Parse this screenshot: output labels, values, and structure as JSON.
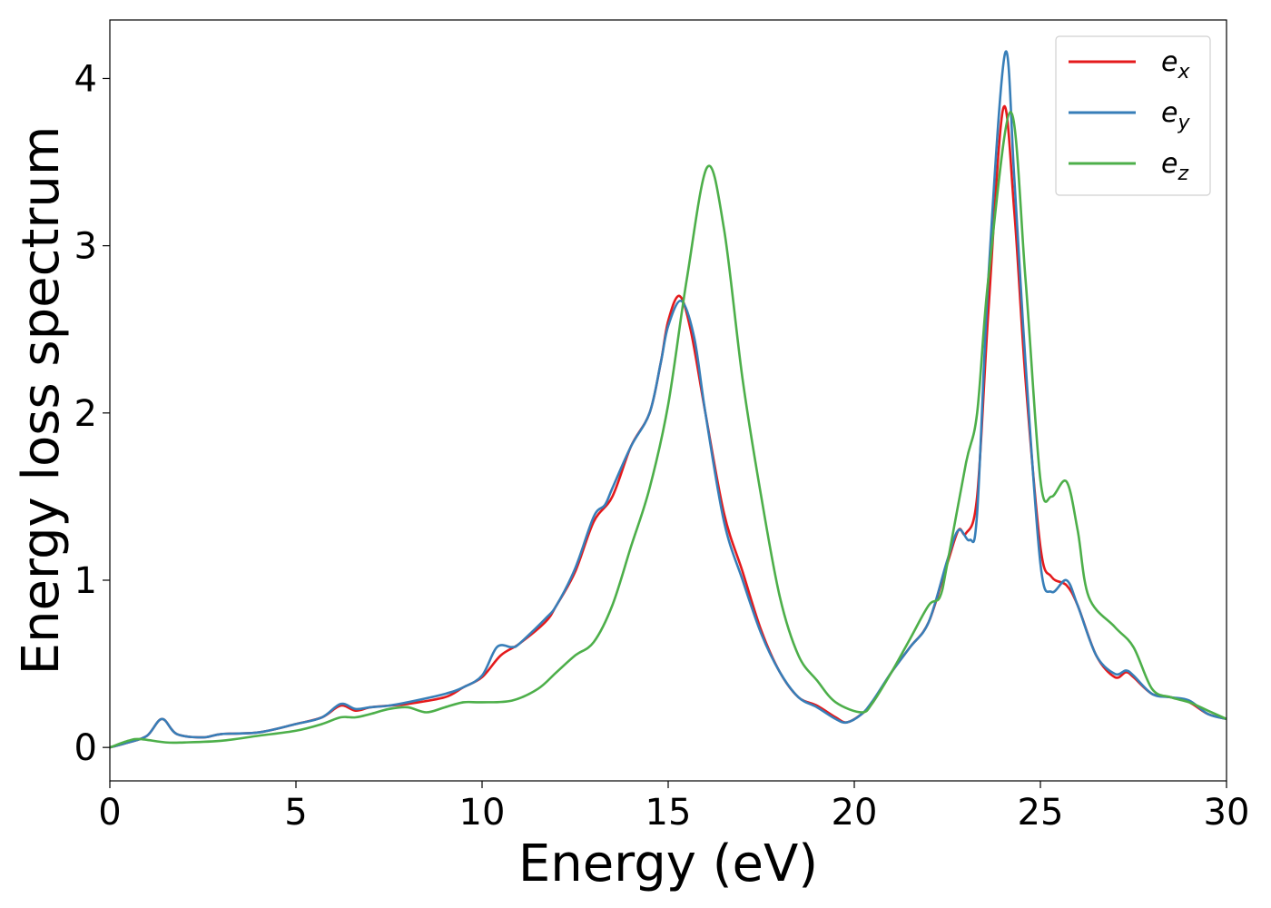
{
  "chart_data": {
    "type": "line",
    "title": "",
    "xlabel": "Energy (eV)",
    "ylabel": "Energy loss spectrum",
    "xlim": [
      0,
      30
    ],
    "ylim": [
      -0.2,
      4.35
    ],
    "xticks": [
      0,
      5,
      10,
      15,
      20,
      25,
      30
    ],
    "yticks": [
      0,
      1,
      2,
      3,
      4
    ],
    "grid": false,
    "legend_position": "top-right",
    "series": [
      {
        "name": "e",
        "name_sub": "x",
        "color": "#e41a1c",
        "points": [
          [
            0,
            0
          ],
          [
            0.5,
            0.03
          ],
          [
            1,
            0.07
          ],
          [
            1.4,
            0.17
          ],
          [
            1.8,
            0.08
          ],
          [
            2.5,
            0.06
          ],
          [
            3,
            0.08
          ],
          [
            4,
            0.09
          ],
          [
            5,
            0.14
          ],
          [
            5.7,
            0.18
          ],
          [
            6.2,
            0.25
          ],
          [
            6.6,
            0.22
          ],
          [
            7,
            0.24
          ],
          [
            7.5,
            0.25
          ],
          [
            8,
            0.26
          ],
          [
            9,
            0.3
          ],
          [
            9.5,
            0.36
          ],
          [
            10,
            0.42
          ],
          [
            10.5,
            0.55
          ],
          [
            11,
            0.62
          ],
          [
            11.7,
            0.75
          ],
          [
            12,
            0.85
          ],
          [
            12.5,
            1.05
          ],
          [
            13,
            1.35
          ],
          [
            13.5,
            1.5
          ],
          [
            14,
            1.8
          ],
          [
            14.5,
            2.0
          ],
          [
            14.8,
            2.3
          ],
          [
            15,
            2.55
          ],
          [
            15.3,
            2.7
          ],
          [
            15.6,
            2.5
          ],
          [
            16,
            2.0
          ],
          [
            16.5,
            1.4
          ],
          [
            17,
            1.05
          ],
          [
            17.5,
            0.7
          ],
          [
            18,
            0.45
          ],
          [
            18.5,
            0.3
          ],
          [
            19,
            0.25
          ],
          [
            19.5,
            0.18
          ],
          [
            19.8,
            0.15
          ],
          [
            20.2,
            0.2
          ],
          [
            20.5,
            0.27
          ],
          [
            21,
            0.45
          ],
          [
            21.5,
            0.6
          ],
          [
            22,
            0.75
          ],
          [
            22.5,
            1.1
          ],
          [
            22.8,
            1.3
          ],
          [
            23,
            1.28
          ],
          [
            23.3,
            1.5
          ],
          [
            23.6,
            2.6
          ],
          [
            24,
            3.82
          ],
          [
            24.3,
            3.2
          ],
          [
            24.6,
            2.2
          ],
          [
            25,
            1.2
          ],
          [
            25.3,
            1.02
          ],
          [
            25.7,
            0.97
          ],
          [
            26,
            0.85
          ],
          [
            26.5,
            0.55
          ],
          [
            27,
            0.42
          ],
          [
            27.3,
            0.45
          ],
          [
            27.5,
            0.42
          ],
          [
            28,
            0.32
          ],
          [
            28.5,
            0.3
          ],
          [
            29,
            0.27
          ],
          [
            29.5,
            0.2
          ],
          [
            30,
            0.17
          ]
        ]
      },
      {
        "name": "e",
        "name_sub": "y",
        "color": "#377eb8",
        "points": [
          [
            0,
            0
          ],
          [
            0.5,
            0.03
          ],
          [
            1,
            0.07
          ],
          [
            1.4,
            0.17
          ],
          [
            1.8,
            0.08
          ],
          [
            2.5,
            0.06
          ],
          [
            3,
            0.08
          ],
          [
            4,
            0.09
          ],
          [
            5,
            0.14
          ],
          [
            5.7,
            0.18
          ],
          [
            6.2,
            0.26
          ],
          [
            6.6,
            0.23
          ],
          [
            7,
            0.24
          ],
          [
            7.5,
            0.25
          ],
          [
            8,
            0.27
          ],
          [
            9,
            0.32
          ],
          [
            9.5,
            0.36
          ],
          [
            10,
            0.43
          ],
          [
            10.4,
            0.6
          ],
          [
            10.8,
            0.6
          ],
          [
            11,
            0.62
          ],
          [
            11.7,
            0.77
          ],
          [
            12,
            0.85
          ],
          [
            12.5,
            1.07
          ],
          [
            13,
            1.38
          ],
          [
            13.3,
            1.45
          ],
          [
            13.5,
            1.55
          ],
          [
            14,
            1.8
          ],
          [
            14.5,
            2.0
          ],
          [
            14.8,
            2.3
          ],
          [
            15,
            2.52
          ],
          [
            15.35,
            2.67
          ],
          [
            15.7,
            2.45
          ],
          [
            16,
            2.0
          ],
          [
            16.5,
            1.35
          ],
          [
            17,
            1.0
          ],
          [
            17.5,
            0.68
          ],
          [
            18,
            0.45
          ],
          [
            18.5,
            0.3
          ],
          [
            19,
            0.24
          ],
          [
            19.5,
            0.17
          ],
          [
            19.8,
            0.15
          ],
          [
            20.2,
            0.2
          ],
          [
            20.5,
            0.28
          ],
          [
            21,
            0.45
          ],
          [
            21.5,
            0.6
          ],
          [
            22,
            0.75
          ],
          [
            22.5,
            1.12
          ],
          [
            22.8,
            1.3
          ],
          [
            23.1,
            1.24
          ],
          [
            23.3,
            1.4
          ],
          [
            23.6,
            2.8
          ],
          [
            24.05,
            4.15
          ],
          [
            24.3,
            3.4
          ],
          [
            24.6,
            2.3
          ],
          [
            25,
            1.1
          ],
          [
            25.3,
            0.93
          ],
          [
            25.7,
            1.0
          ],
          [
            26,
            0.85
          ],
          [
            26.5,
            0.55
          ],
          [
            27,
            0.44
          ],
          [
            27.3,
            0.46
          ],
          [
            27.5,
            0.43
          ],
          [
            28,
            0.32
          ],
          [
            28.5,
            0.3
          ],
          [
            29,
            0.28
          ],
          [
            29.5,
            0.2
          ],
          [
            30,
            0.17
          ]
        ]
      },
      {
        "name": "e",
        "name_sub": "z",
        "color": "#4daf4a",
        "points": [
          [
            0,
            0
          ],
          [
            0.5,
            0.04
          ],
          [
            0.8,
            0.05
          ],
          [
            1.5,
            0.03
          ],
          [
            2,
            0.03
          ],
          [
            3,
            0.04
          ],
          [
            4,
            0.07
          ],
          [
            5,
            0.1
          ],
          [
            5.7,
            0.14
          ],
          [
            6.2,
            0.18
          ],
          [
            6.6,
            0.18
          ],
          [
            7,
            0.2
          ],
          [
            7.5,
            0.23
          ],
          [
            8,
            0.24
          ],
          [
            8.5,
            0.21
          ],
          [
            9,
            0.24
          ],
          [
            9.5,
            0.27
          ],
          [
            10,
            0.27
          ],
          [
            10.8,
            0.28
          ],
          [
            11.5,
            0.35
          ],
          [
            12,
            0.45
          ],
          [
            12.5,
            0.55
          ],
          [
            13,
            0.63
          ],
          [
            13.5,
            0.85
          ],
          [
            14,
            1.2
          ],
          [
            14.5,
            1.55
          ],
          [
            15,
            2.05
          ],
          [
            15.5,
            2.8
          ],
          [
            16.05,
            3.47
          ],
          [
            16.5,
            3.1
          ],
          [
            17,
            2.2
          ],
          [
            17.5,
            1.5
          ],
          [
            18,
            0.9
          ],
          [
            18.5,
            0.55
          ],
          [
            19,
            0.4
          ],
          [
            19.5,
            0.27
          ],
          [
            20.2,
            0.21
          ],
          [
            20.5,
            0.27
          ],
          [
            21,
            0.45
          ],
          [
            21.5,
            0.65
          ],
          [
            22,
            0.85
          ],
          [
            22.3,
            0.9
          ],
          [
            22.5,
            1.1
          ],
          [
            23,
            1.7
          ],
          [
            23.3,
            2.0
          ],
          [
            23.6,
            2.8
          ],
          [
            24.2,
            3.8
          ],
          [
            24.6,
            2.8
          ],
          [
            25,
            1.6
          ],
          [
            25.3,
            1.5
          ],
          [
            25.7,
            1.59
          ],
          [
            26,
            1.3
          ],
          [
            26.3,
            0.9
          ],
          [
            27,
            0.72
          ],
          [
            27.5,
            0.6
          ],
          [
            28,
            0.35
          ],
          [
            28.5,
            0.3
          ],
          [
            29,
            0.27
          ],
          [
            29.5,
            0.22
          ],
          [
            30,
            0.17
          ]
        ]
      }
    ]
  }
}
